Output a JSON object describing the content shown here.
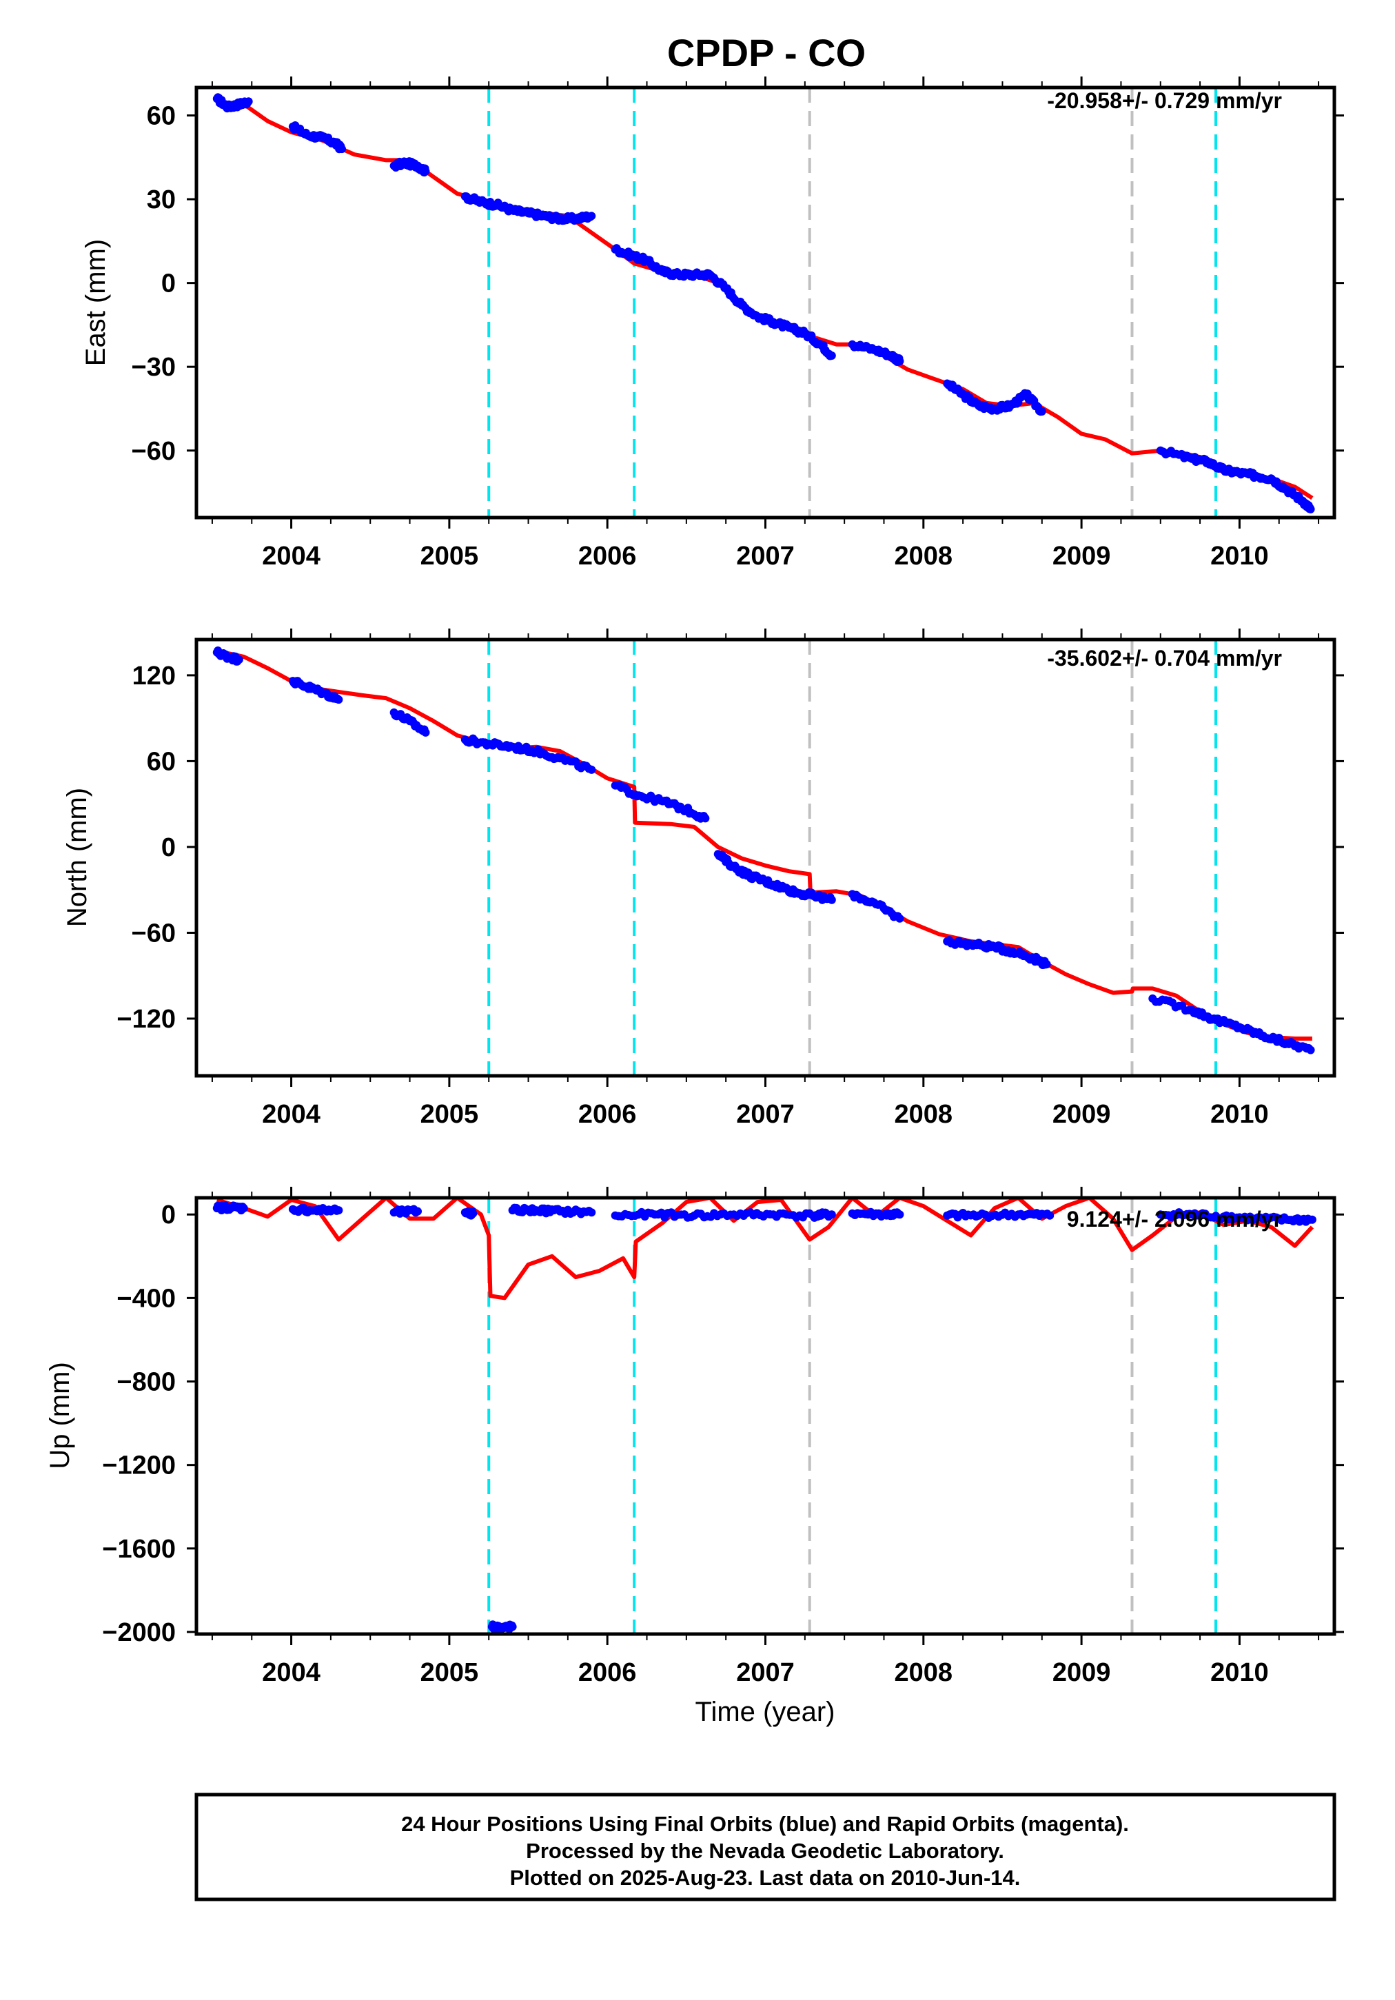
{
  "title": "CPDP - CO",
  "xlabel": "Time (year)",
  "footer": {
    "line1": "24 Hour Positions Using Final Orbits (blue) and Rapid Orbits (magenta).",
    "line2": "Processed by the Nevada Geodetic Laboratory.",
    "line3": "Plotted on 2025-Aug-23. Last data on 2010-Jun-14."
  },
  "colors": {
    "final": "#0000ff",
    "model": "#ff0000",
    "equipment_change": "#00e5ee",
    "other_event": "#c0c0c0"
  },
  "chart_data": [
    {
      "type": "scatter",
      "ylabel": "East (mm)",
      "rate": "-20.958+/- 0.729 mm/yr",
      "xlim": [
        2003.4,
        2010.6
      ],
      "ylim": [
        -84,
        70
      ],
      "yticks": [
        60,
        30,
        0,
        -30,
        -60
      ],
      "yticklabels": [
        "60",
        "30",
        "0",
        "−30",
        "−60"
      ],
      "xticks": [
        2004,
        2005,
        2006,
        2007,
        2008,
        2009,
        2010
      ],
      "xticklabels": [
        "2004",
        "2005",
        "2006",
        "2007",
        "2008",
        "2009",
        "2010"
      ],
      "vlines": [
        {
          "x": 2005.25,
          "kind": "equipment_change"
        },
        {
          "x": 2006.17,
          "kind": "equipment_change"
        },
        {
          "x": 2007.28,
          "kind": "other_event"
        },
        {
          "x": 2009.32,
          "kind": "other_event"
        },
        {
          "x": 2009.85,
          "kind": "equipment_change"
        }
      ],
      "data_segments": [
        {
          "x": [
            2003.53,
            2003.6,
            2003.67,
            2003.73
          ],
          "y": [
            66,
            63,
            64,
            65
          ]
        },
        {
          "x": [
            2004.01,
            2004.1,
            2004.2,
            2004.28,
            2004.32
          ],
          "y": [
            56,
            53,
            52,
            50,
            48
          ]
        },
        {
          "x": [
            2004.65,
            2004.72,
            2004.8,
            2004.85
          ],
          "y": [
            42,
            43,
            42,
            40
          ]
        },
        {
          "x": [
            2005.1,
            2005.2,
            2005.3,
            2005.4,
            2005.5,
            2005.6,
            2005.7,
            2005.8,
            2005.9
          ],
          "y": [
            31,
            29,
            28,
            26,
            25,
            24,
            23,
            23,
            24
          ]
        },
        {
          "x": [
            2006.05,
            2006.15,
            2006.25,
            2006.35,
            2006.45,
            2006.55,
            2006.65,
            2006.75,
            2006.85,
            2006.95,
            2007.05,
            2007.15,
            2007.25,
            2007.35,
            2007.42
          ],
          "y": [
            12,
            10,
            8,
            4,
            3,
            3,
            3,
            -2,
            -8,
            -12,
            -14,
            -16,
            -18,
            -22,
            -26
          ]
        },
        {
          "x": [
            2007.55,
            2007.7,
            2007.8,
            2007.85
          ],
          "y": [
            -22,
            -24,
            -26,
            -28
          ]
        },
        {
          "x": [
            2008.15,
            2008.25,
            2008.35,
            2008.45,
            2008.55,
            2008.65,
            2008.75
          ],
          "y": [
            -36,
            -40,
            -44,
            -45,
            -44,
            -40,
            -46
          ]
        },
        {
          "x": [
            2009.5,
            2009.7,
            2009.8,
            2009.9,
            2010.0,
            2010.1,
            2010.2,
            2010.3,
            2010.4,
            2010.45
          ],
          "y": [
            -60,
            -63,
            -64,
            -67,
            -68,
            -69,
            -70,
            -74,
            -78,
            -81
          ]
        }
      ],
      "model": {
        "x": [
          2003.53,
          2003.7,
          2003.85,
          2004.0,
          2004.2,
          2004.4,
          2004.6,
          2004.75,
          2004.9,
          2005.05,
          2005.25,
          2005.4,
          2005.6,
          2005.75,
          2005.9,
          2006.05,
          2006.17,
          2006.35,
          2006.55,
          2006.7,
          2006.85,
          2007.0,
          2007.15,
          2007.28,
          2007.45,
          2007.6,
          2007.75,
          2007.9,
          2008.05,
          2008.25,
          2008.4,
          2008.55,
          2008.7,
          2008.85,
          2009.0,
          2009.15,
          2009.32,
          2009.5,
          2009.65,
          2009.8,
          2009.85,
          2010.0,
          2010.2,
          2010.35,
          2010.46
        ],
        "y": [
          65,
          64,
          58,
          54,
          51,
          46,
          44,
          44,
          38,
          32,
          29,
          26,
          25,
          24,
          18,
          12,
          7,
          4,
          3,
          0,
          -8,
          -13,
          -15,
          -19,
          -22,
          -22,
          -26,
          -31,
          -34,
          -38,
          -43,
          -44,
          -43,
          -48,
          -54,
          -56,
          -61,
          -60,
          -61,
          -63,
          -67,
          -68,
          -70,
          -73,
          -77
        ]
      }
    },
    {
      "type": "scatter",
      "ylabel": "North (mm)",
      "rate": "-35.602+/- 0.704 mm/yr",
      "xlim": [
        2003.4,
        2010.6
      ],
      "ylim": [
        -160,
        145
      ],
      "yticks": [
        120,
        60,
        0,
        -60,
        -120
      ],
      "yticklabels": [
        "120",
        "60",
        "0",
        "−60",
        "−120"
      ],
      "xticks": [
        2004,
        2005,
        2006,
        2007,
        2008,
        2009,
        2010
      ],
      "xticklabels": [
        "2004",
        "2005",
        "2006",
        "2007",
        "2008",
        "2009",
        "2010"
      ],
      "vlines": [
        {
          "x": 2005.25,
          "kind": "equipment_change"
        },
        {
          "x": 2006.17,
          "kind": "equipment_change"
        },
        {
          "x": 2007.28,
          "kind": "other_event"
        },
        {
          "x": 2009.32,
          "kind": "other_event"
        },
        {
          "x": 2009.85,
          "kind": "equipment_change"
        }
      ],
      "data_segments": [
        {
          "x": [
            2003.53,
            2003.6,
            2003.67
          ],
          "y": [
            136,
            133,
            131
          ]
        },
        {
          "x": [
            2004.01,
            2004.1,
            2004.2,
            2004.3
          ],
          "y": [
            116,
            112,
            108,
            103
          ]
        },
        {
          "x": [
            2004.65,
            2004.75,
            2004.85
          ],
          "y": [
            94,
            88,
            80
          ]
        },
        {
          "x": [
            2005.1,
            2005.25,
            2005.4,
            2005.55,
            2005.7,
            2005.9
          ],
          "y": [
            75,
            72,
            70,
            67,
            62,
            54
          ]
        },
        {
          "x": [
            2006.05,
            2006.2,
            2006.35,
            2006.5,
            2006.62
          ],
          "y": [
            43,
            36,
            32,
            26,
            20
          ]
        },
        {
          "x": [
            2006.7,
            2006.8,
            2006.9,
            2007.0,
            2007.1,
            2007.2,
            2007.3,
            2007.42
          ],
          "y": [
            -5,
            -14,
            -20,
            -24,
            -28,
            -32,
            -34,
            -37
          ]
        },
        {
          "x": [
            2007.55,
            2007.7,
            2007.85
          ],
          "y": [
            -33,
            -40,
            -50
          ]
        },
        {
          "x": [
            2008.15,
            2008.3,
            2008.45,
            2008.6,
            2008.7,
            2008.78
          ],
          "y": [
            -66,
            -68,
            -70,
            -74,
            -78,
            -82
          ]
        },
        {
          "x": [
            2009.45,
            2009.7,
            2009.85,
            2010.0,
            2010.15,
            2010.3,
            2010.45
          ],
          "y": [
            -106,
            -114,
            -121,
            -126,
            -132,
            -137,
            -142
          ]
        }
      ],
      "model": {
        "x": [
          2003.53,
          2003.7,
          2003.85,
          2004.0,
          2004.2,
          2004.45,
          2004.6,
          2004.75,
          2004.9,
          2005.05,
          2005.25,
          2005.4,
          2005.55,
          2005.7,
          2005.85,
          2006.0,
          2006.17,
          2006.175,
          2006.4,
          2006.55,
          2006.7,
          2006.85,
          2007.0,
          2007.15,
          2007.28,
          2007.285,
          2007.45,
          2007.6,
          2007.75,
          2007.9,
          2008.1,
          2008.3,
          2008.45,
          2008.6,
          2008.75,
          2008.9,
          2009.05,
          2009.2,
          2009.32,
          2009.325,
          2009.45,
          2009.6,
          2009.75,
          2009.9,
          2010.05,
          2010.2,
          2010.35,
          2010.46
        ],
        "y": [
          137,
          133,
          125,
          116,
          110,
          106,
          104,
          97,
          88,
          78,
          72,
          69,
          70,
          67,
          58,
          48,
          42,
          17,
          16,
          14,
          0,
          -8,
          -13,
          -17,
          -19,
          -32,
          -31,
          -34,
          -42,
          -52,
          -61,
          -66,
          -68,
          -70,
          -80,
          -89,
          -96,
          -102,
          -101,
          -99,
          -99,
          -104,
          -115,
          -124,
          -130,
          -133,
          -134,
          -134
        ]
      }
    },
    {
      "type": "scatter",
      "ylabel": "Up (mm)",
      "rate": "9.124+/- 2.096 mm/yr",
      "xlim": [
        2003.4,
        2010.6
      ],
      "ylim": [
        -2010,
        80
      ],
      "yticks": [
        0,
        -400,
        -800,
        -1200,
        -1600,
        -2000
      ],
      "yticklabels": [
        "0",
        "−400",
        "−800",
        "−1200",
        "−1600",
        "−2000"
      ],
      "xticks": [
        2004,
        2005,
        2006,
        2007,
        2008,
        2009,
        2010
      ],
      "xticklabels": [
        "2004",
        "2005",
        "2006",
        "2007",
        "2008",
        "2009",
        "2010"
      ],
      "vlines": [
        {
          "x": 2005.25,
          "kind": "equipment_change"
        },
        {
          "x": 2006.17,
          "kind": "equipment_change"
        },
        {
          "x": 2007.28,
          "kind": "other_event"
        },
        {
          "x": 2009.32,
          "kind": "other_event"
        },
        {
          "x": 2009.85,
          "kind": "equipment_change"
        }
      ],
      "data_segments": [
        {
          "x": [
            2003.53,
            2003.6,
            2003.7
          ],
          "y": [
            30,
            35,
            30
          ]
        },
        {
          "x": [
            2004.01,
            2004.15,
            2004.3
          ],
          "y": [
            25,
            20,
            20
          ]
        },
        {
          "x": [
            2004.65,
            2004.8
          ],
          "y": [
            10,
            15
          ]
        },
        {
          "x": [
            2005.1,
            2005.15
          ],
          "y": [
            10,
            5
          ]
        },
        {
          "x": [
            2005.27,
            2005.3,
            2005.35,
            2005.4
          ],
          "y": [
            -1975,
            -1980,
            -1980,
            -1975
          ]
        },
        {
          "x": [
            2005.4,
            2005.55,
            2005.7,
            2005.9
          ],
          "y": [
            20,
            20,
            15,
            10
          ]
        },
        {
          "x": [
            2006.05,
            2006.3,
            2006.55,
            2006.8,
            2007.05,
            2007.3,
            2007.42
          ],
          "y": [
            -5,
            0,
            -5,
            0,
            0,
            -5,
            0
          ]
        },
        {
          "x": [
            2007.55,
            2007.75,
            2007.85
          ],
          "y": [
            5,
            0,
            0
          ]
        },
        {
          "x": [
            2008.15,
            2008.35,
            2008.6,
            2008.8
          ],
          "y": [
            -5,
            -5,
            0,
            -5
          ]
        },
        {
          "x": [
            2009.5,
            2009.7,
            2009.9,
            2010.1,
            2010.3,
            2010.46
          ],
          "y": [
            0,
            0,
            -10,
            -20,
            -25,
            -25
          ]
        }
      ],
      "model": {
        "x": [
          2003.53,
          2003.7,
          2003.85,
          2004.0,
          2004.15,
          2004.3,
          2004.45,
          2004.6,
          2004.75,
          2004.9,
          2005.05,
          2005.2,
          2005.25,
          2005.26,
          2005.35,
          2005.5,
          2005.65,
          2005.8,
          2005.95,
          2006.1,
          2006.17,
          2006.18,
          2006.35,
          2006.5,
          2006.65,
          2006.8,
          2006.95,
          2007.1,
          2007.28,
          2007.4,
          2007.55,
          2007.7,
          2007.85,
          2008.0,
          2008.15,
          2008.3,
          2008.45,
          2008.6,
          2008.75,
          2008.9,
          2009.05,
          2009.2,
          2009.32,
          2009.45,
          2009.6,
          2009.75,
          2009.9,
          2010.05,
          2010.2,
          2010.35,
          2010.46
        ],
        "y": [
          70,
          30,
          -10,
          70,
          40,
          -120,
          -20,
          80,
          -20,
          -20,
          80,
          0,
          -100,
          -390,
          -400,
          -240,
          -200,
          -300,
          -270,
          -210,
          -300,
          -130,
          -40,
          60,
          80,
          -30,
          60,
          70,
          -120,
          -60,
          80,
          -10,
          80,
          40,
          -30,
          -100,
          30,
          80,
          -20,
          40,
          80,
          -20,
          -170,
          -100,
          -10,
          10,
          -50,
          -30,
          -60,
          -150,
          -60
        ]
      }
    }
  ]
}
